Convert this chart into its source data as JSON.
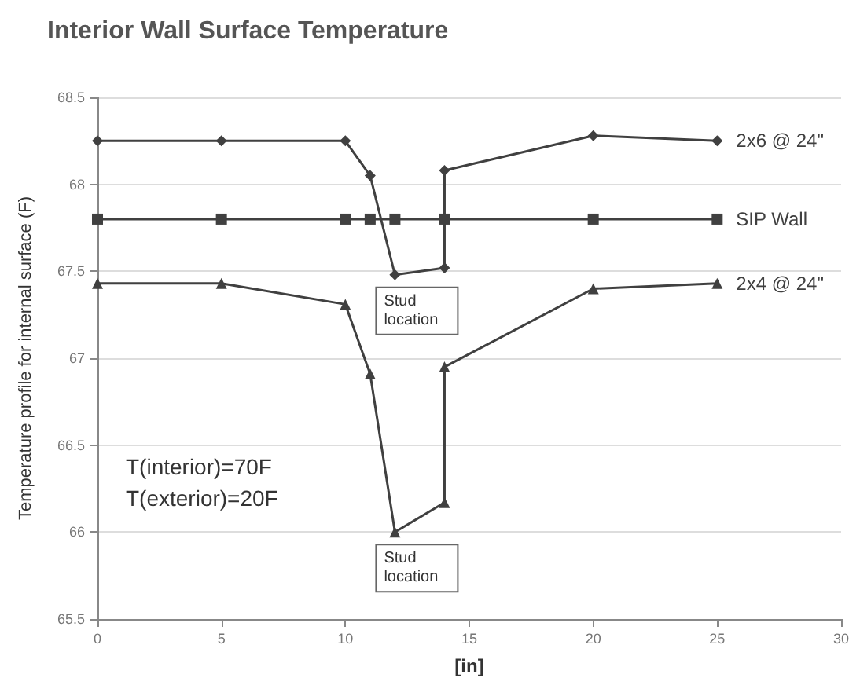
{
  "chart_data": {
    "type": "line",
    "title": "Interior Wall Surface Temperature",
    "xlabel": "[in]",
    "ylabel": "Temperature profile for internal surface (F)",
    "xlim": [
      0,
      30
    ],
    "xticks": [
      0,
      5,
      10,
      15,
      20,
      25,
      30
    ],
    "ylim": [
      65.5,
      68.5
    ],
    "yticks": [
      65.5,
      66,
      66.5,
      67,
      67.5,
      68,
      68.5
    ],
    "grid": "y",
    "legend": false,
    "line_style": "solid",
    "series": [
      {
        "name": "2x6 @ 24\"",
        "color": "#404040",
        "marker": "diamond",
        "x": [
          0,
          5,
          10,
          11,
          12,
          14,
          14,
          20,
          25
        ],
        "values": [
          68.25,
          68.25,
          68.25,
          68.05,
          67.48,
          67.52,
          68.08,
          68.28,
          68.25
        ]
      },
      {
        "name": "SIP Wall",
        "color": "#404040",
        "marker": "square",
        "x": [
          0,
          5,
          10,
          11,
          12,
          14,
          20,
          25
        ],
        "values": [
          67.8,
          67.8,
          67.8,
          67.8,
          67.8,
          67.8,
          67.8,
          67.8
        ]
      },
      {
        "name": "2x4 @ 24\"",
        "color": "#404040",
        "marker": "triangle",
        "x": [
          0,
          5,
          10,
          11,
          12,
          14,
          14,
          20,
          25
        ],
        "values": [
          67.43,
          67.43,
          67.31,
          66.91,
          66.0,
          66.17,
          66.95,
          67.4,
          67.43
        ]
      }
    ],
    "annotations": [
      "T(interior)=70F",
      "T(exterior)=20F",
      {
        "text": "Stud location",
        "x": 12,
        "y": 67.48
      },
      {
        "text": "Stud location",
        "x": 12,
        "y": 66.0
      }
    ]
  }
}
